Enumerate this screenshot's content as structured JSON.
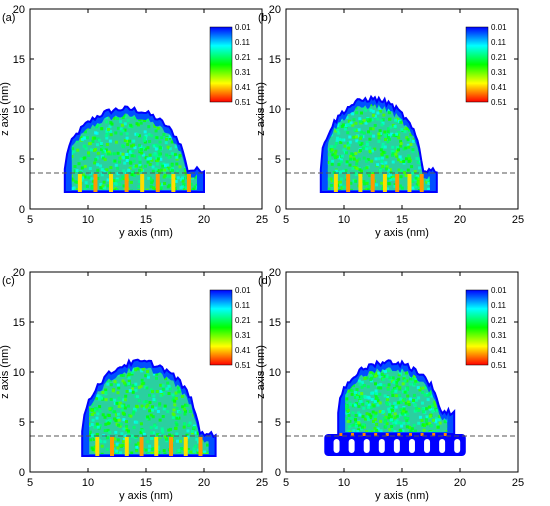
{
  "chart_data": [
    {
      "type": "heatmap",
      "panel_label": "(a)",
      "xlabel": "y axis (nm)",
      "ylabel": "z axis (nm)",
      "xlim": [
        5,
        25
      ],
      "ylim": [
        0,
        20
      ],
      "xticks": [
        "5",
        "10",
        "15",
        "20",
        "25"
      ],
      "yticks": [
        "0",
        "5",
        "10",
        "15",
        "20"
      ],
      "reference_line": {
        "style": "dashed",
        "z": 3.6
      },
      "colorbar": {
        "labels": [
          "0.01",
          "0.11",
          "0.21",
          "0.31",
          "0.41",
          "0.51"
        ],
        "colors": [
          "#0000ff",
          "#00ffff",
          "#00ff00",
          "#ffff00",
          "#ff0000"
        ]
      },
      "cloud": {
        "y_range": [
          8,
          20
        ],
        "top_z": 10,
        "base_z": 1.7
      },
      "substrate": "pillars"
    },
    {
      "type": "heatmap",
      "panel_label": "(b)",
      "xlabel": "y axis (nm)",
      "ylabel": "z axis (nm)",
      "xlim": [
        5,
        25
      ],
      "ylim": [
        0,
        20
      ],
      "xticks": [
        "5",
        "10",
        "15",
        "20",
        "25"
      ],
      "yticks": [
        "0",
        "5",
        "10",
        "15",
        "20"
      ],
      "reference_line": {
        "style": "dashed",
        "z": 3.6
      },
      "colorbar": {
        "labels": [
          "0.01",
          "0.11",
          "0.21",
          "0.31",
          "0.41",
          "0.51"
        ],
        "colors": [
          "#0000ff",
          "#00ffff",
          "#00ff00",
          "#ffff00",
          "#ff0000"
        ]
      },
      "cloud": {
        "y_range": [
          8,
          18
        ],
        "top_z": 11,
        "base_z": 1.7
      },
      "substrate": "pillars"
    },
    {
      "type": "heatmap",
      "panel_label": "(c)",
      "xlabel": "y axis (nm)",
      "ylabel": "z axis (nm)",
      "xlim": [
        5,
        25
      ],
      "ylim": [
        0,
        20
      ],
      "xticks": [
        "5",
        "10",
        "15",
        "20",
        "25"
      ],
      "yticks": [
        "0",
        "5",
        "10",
        "15",
        "20"
      ],
      "reference_line": {
        "style": "dashed",
        "z": 3.6
      },
      "colorbar": {
        "labels": [
          "0.01",
          "0.11",
          "0.21",
          "0.31",
          "0.41",
          "0.51"
        ],
        "colors": [
          "#0000ff",
          "#00ffff",
          "#00ff00",
          "#ffff00",
          "#ff0000"
        ]
      },
      "cloud": {
        "y_range": [
          9.5,
          21
        ],
        "top_z": 11,
        "base_z": 1.6
      },
      "substrate": "pillars"
    },
    {
      "type": "heatmap",
      "panel_label": "(d)",
      "xlabel": "y axis (nm)",
      "ylabel": "z axis (nm)",
      "xlim": [
        5,
        25
      ],
      "ylim": [
        0,
        20
      ],
      "xticks": [
        "5",
        "10",
        "15",
        "20",
        "25"
      ],
      "yticks": [
        "0",
        "5",
        "10",
        "15",
        "20"
      ],
      "reference_line": {
        "style": "dashed",
        "z": 3.6
      },
      "colorbar": {
        "labels": [
          "0.01",
          "0.11",
          "0.21",
          "0.31",
          "0.41",
          "0.51"
        ],
        "colors": [
          "#0000ff",
          "#00ffff",
          "#00ff00",
          "#ffff00",
          "#ff0000"
        ]
      },
      "cloud": {
        "y_range": [
          9.5,
          19.5
        ],
        "top_z": 11,
        "base_z": 3.8
      },
      "substrate": "slits"
    }
  ]
}
